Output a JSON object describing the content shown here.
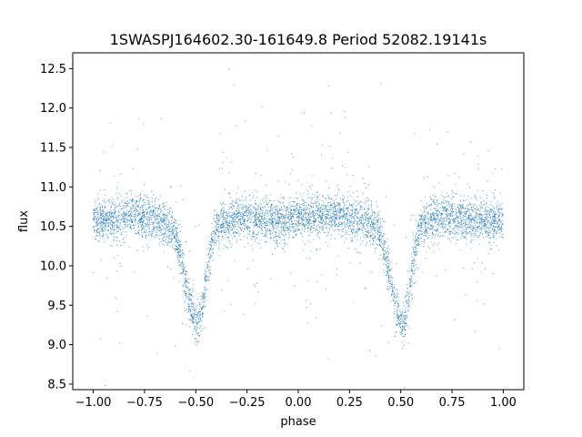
{
  "chart_data": {
    "type": "scatter",
    "title": "1SWASPJ164602.30-161649.8 Period 52082.19141s",
    "xlabel": "phase",
    "ylabel": "flux",
    "xlim": [
      -1.1,
      1.1
    ],
    "ylim": [
      8.43,
      12.7
    ],
    "xticks": [
      -1.0,
      -0.75,
      -0.5,
      -0.25,
      0.0,
      0.25,
      0.5,
      0.75,
      1.0
    ],
    "xtick_labels": [
      "−1.00",
      "−0.75",
      "−0.50",
      "−0.25",
      "0.00",
      "0.25",
      "0.50",
      "0.75",
      "1.00"
    ],
    "yticks": [
      8.5,
      9.0,
      9.5,
      10.0,
      10.5,
      11.0,
      11.5,
      12.0,
      12.5
    ],
    "ytick_labels": [
      "8.5",
      "9.0",
      "9.5",
      "10.0",
      "10.5",
      "11.0",
      "11.5",
      "12.0",
      "12.5"
    ],
    "marker_color": "#1f77b4",
    "grid": false,
    "series": [
      {
        "points": [
          [
            -1.0,
            10.55
          ],
          [
            -0.95,
            10.6
          ],
          [
            -0.9,
            10.58
          ],
          [
            -0.85,
            10.62
          ],
          [
            -0.8,
            10.65
          ],
          [
            -0.75,
            10.63
          ],
          [
            -0.7,
            10.6
          ],
          [
            -0.65,
            10.55
          ],
          [
            -0.6,
            10.4
          ],
          [
            -0.58,
            10.2
          ],
          [
            -0.55,
            9.8
          ],
          [
            -0.52,
            9.4
          ],
          [
            -0.5,
            9.25
          ],
          [
            -0.48,
            9.3
          ],
          [
            -0.46,
            9.6
          ],
          [
            -0.44,
            10.0
          ],
          [
            -0.42,
            10.3
          ],
          [
            -0.4,
            10.5
          ],
          [
            -0.35,
            10.58
          ],
          [
            -0.3,
            10.6
          ],
          [
            -0.25,
            10.6
          ],
          [
            -0.2,
            10.58
          ],
          [
            -0.15,
            10.6
          ],
          [
            -0.1,
            10.57
          ],
          [
            -0.05,
            10.58
          ],
          [
            0.0,
            10.6
          ],
          [
            0.05,
            10.6
          ],
          [
            0.1,
            10.62
          ],
          [
            0.15,
            10.63
          ],
          [
            0.2,
            10.65
          ],
          [
            0.25,
            10.63
          ],
          [
            0.3,
            10.6
          ],
          [
            0.35,
            10.55
          ],
          [
            0.4,
            10.4
          ],
          [
            0.42,
            10.2
          ],
          [
            0.45,
            9.8
          ],
          [
            0.48,
            9.4
          ],
          [
            0.5,
            9.25
          ],
          [
            0.52,
            9.3
          ],
          [
            0.54,
            9.6
          ],
          [
            0.56,
            10.0
          ],
          [
            0.58,
            10.3
          ],
          [
            0.6,
            10.5
          ],
          [
            0.65,
            10.58
          ],
          [
            0.7,
            10.6
          ],
          [
            0.75,
            10.6
          ],
          [
            0.8,
            10.6
          ],
          [
            0.85,
            10.58
          ],
          [
            0.9,
            10.6
          ],
          [
            0.95,
            10.57
          ],
          [
            1.0,
            10.58
          ]
        ]
      }
    ]
  }
}
